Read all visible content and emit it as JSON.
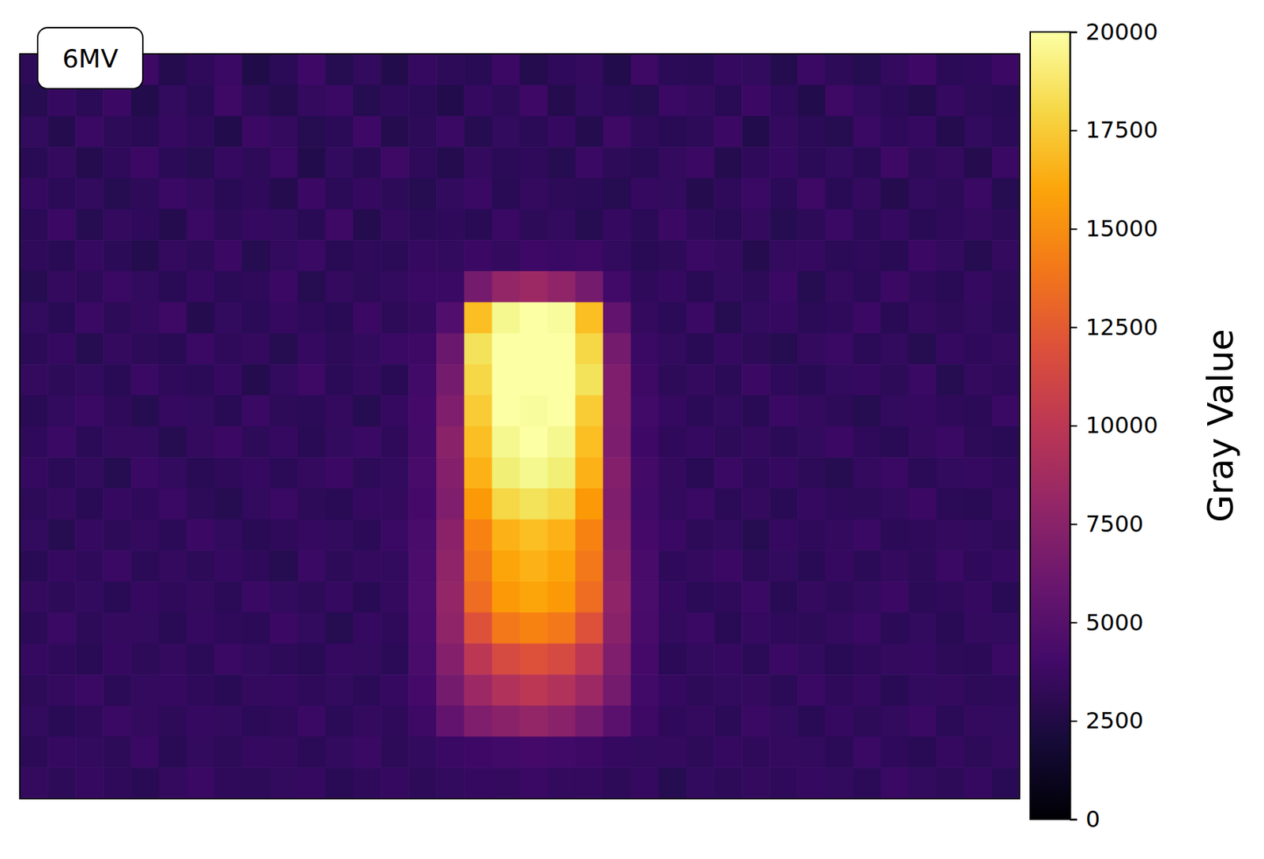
{
  "chart_data": {
    "type": "heatmap",
    "title": "6MV",
    "tick_labels": false,
    "cells": [
      [
        3100,
        2600,
        3400,
        2900,
        3800,
        2700,
        3200,
        3600,
        2500,
        3000,
        3900,
        2800,
        3300,
        2600,
        3500,
        3100,
        2900,
        3700,
        2700,
        3200,
        3400,
        2600,
        3800,
        3000,
        2900,
        3500,
        3300,
        2700,
        3600,
        3100,
        2800,
        3400,
        3900,
        3000,
        3200,
        3700
      ],
      [
        2800,
        3500,
        3000,
        3700,
        2600,
        3300,
        2900,
        3800,
        3100,
        2700,
        3400,
        3600,
        2800,
        3200,
        3000,
        2600,
        3500,
        3100,
        3900,
        2700,
        3300,
        3000,
        2800,
        3600,
        3400,
        2900,
        3700,
        3200,
        2600,
        3800,
        3300,
        3000,
        2700,
        3500,
        3100,
        2900
      ],
      [
        3300,
        2700,
        3600,
        3100,
        2900,
        3500,
        3200,
        2600,
        3700,
        3400,
        2800,
        3000,
        3900,
        2700,
        3100,
        3600,
        2800,
        3300,
        3000,
        3500,
        2700,
        3800,
        3200,
        2900,
        3100,
        3700,
        2600,
        3400,
        3000,
        2800,
        3600,
        3200,
        3500,
        2700,
        3300,
        3000
      ],
      [
        2900,
        3400,
        2700,
        3200,
        3700,
        3000,
        2800,
        3500,
        3100,
        3600,
        2600,
        3300,
        2900,
        3800,
        3200,
        2700,
        3400,
        3000,
        3200,
        2800,
        3600,
        3100,
        2900,
        3400,
        3700,
        2700,
        3200,
        3500,
        3000,
        3300,
        2900,
        3800,
        3100,
        3400,
        2700,
        3600
      ],
      [
        3500,
        3000,
        3300,
        2800,
        3100,
        3600,
        3400,
        2900,
        3200,
        2700,
        3700,
        3000,
        3500,
        3100,
        2800,
        3300,
        3600,
        2900,
        3400,
        3100,
        3000,
        2800,
        3500,
        3300,
        2700,
        3200,
        3600,
        3000,
        3800,
        2900,
        3400,
        2700,
        3300,
        3100,
        3600,
        2800
      ],
      [
        3000,
        3700,
        2800,
        3400,
        3200,
        2700,
        3600,
        3100,
        3500,
        3300,
        2900,
        3800,
        2700,
        3400,
        3000,
        3200,
        2900,
        3600,
        3100,
        3300,
        2800,
        3500,
        3000,
        3700,
        3200,
        2900,
        3400,
        2800,
        3100,
        3600,
        3000,
        3500,
        2900,
        3200,
        3400,
        3100
      ],
      [
        3200,
        2900,
        3500,
        3000,
        2700,
        3400,
        3100,
        3700,
        2800,
        3300,
        3600,
        2900,
        3200,
        3000,
        3500,
        3300,
        3700,
        3400,
        3900,
        3600,
        3800,
        3300,
        2900,
        3100,
        3600,
        3400,
        2700,
        3300,
        3500,
        3000,
        3200,
        2900,
        3700,
        3300,
        2800,
        3400
      ],
      [
        2800,
        3400,
        3100,
        3600,
        3300,
        2900,
        3500,
        3000,
        3200,
        3700,
        2800,
        3400,
        3100,
        3300,
        3600,
        3600,
        6500,
        8000,
        8500,
        7800,
        6500,
        4000,
        3200,
        3500,
        2900,
        3300,
        3100,
        3600,
        2800,
        3400,
        3000,
        3700,
        3200,
        2900,
        3500,
        3100
      ],
      [
        3300,
        2900,
        3600,
        3100,
        3400,
        3800,
        2700,
        3300,
        3000,
        3500,
        3200,
        2900,
        3700,
        3100,
        3400,
        4800,
        17000,
        19500,
        20000,
        19800,
        17000,
        5500,
        3400,
        3000,
        3600,
        2800,
        3300,
        3500,
        3000,
        3200,
        3700,
        2900,
        3400,
        3100,
        3300,
        3000
      ],
      [
        3000,
        3500,
        2800,
        3400,
        3100,
        2900,
        3600,
        3200,
        3400,
        2800,
        3500,
        3100,
        3300,
        3600,
        3800,
        6000,
        18500,
        20000,
        20000,
        20000,
        18000,
        6500,
        3600,
        3300,
        2900,
        3500,
        3100,
        2800,
        3400,
        3600,
        3000,
        3300,
        2800,
        3500,
        3200,
        3400
      ],
      [
        3400,
        3100,
        3300,
        2900,
        3600,
        3200,
        3000,
        3500,
        2700,
        3300,
        3800,
        3000,
        3400,
        2900,
        4000,
        6500,
        18000,
        20000,
        20000,
        20000,
        18500,
        7000,
        3800,
        3100,
        3400,
        3000,
        3700,
        3200,
        2900,
        3300,
        3500,
        3100,
        3600,
        2800,
        3400,
        3200
      ],
      [
        2900,
        3300,
        3600,
        3200,
        2800,
        3500,
        3300,
        2900,
        3600,
        3100,
        3000,
        3400,
        2800,
        3500,
        4200,
        7000,
        17500,
        20000,
        19800,
        20000,
        17500,
        7000,
        4000,
        3500,
        3000,
        3300,
        2900,
        3600,
        3400,
        3100,
        2800,
        3300,
        3500,
        3200,
        3000,
        3600
      ],
      [
        3200,
        3600,
        3000,
        3400,
        3300,
        2800,
        3400,
        3700,
        3100,
        3500,
        2900,
        3300,
        3600,
        3200,
        4100,
        7500,
        17000,
        19500,
        20000,
        19500,
        17000,
        6800,
        3900,
        3200,
        3500,
        3100,
        3400,
        3000,
        3300,
        3700,
        3200,
        2900,
        3400,
        3600,
        3100,
        2900
      ],
      [
        3500,
        3000,
        3300,
        2800,
        3600,
        3300,
        2900,
        3200,
        3500,
        3000,
        3400,
        3700,
        3100,
        3300,
        4300,
        7200,
        16500,
        19000,
        19500,
        19000,
        16500,
        7200,
        4100,
        3400,
        2900,
        3600,
        3200,
        3500,
        3100,
        2800,
        3400,
        3600,
        3000,
        3300,
        3500,
        3200
      ],
      [
        3100,
        3400,
        2900,
        3500,
        3200,
        3600,
        3100,
        2800,
        3300,
        3600,
        3100,
        2900,
        3500,
        3400,
        4200,
        7000,
        15500,
        18000,
        18500,
        18000,
        15500,
        7000,
        4000,
        3300,
        3600,
        3000,
        3400,
        2900,
        3500,
        3200,
        3100,
        3300,
        3700,
        3000,
        2900,
        3400
      ],
      [
        3300,
        2800,
        3500,
        3100,
        3400,
        3000,
        3700,
        3300,
        2900,
        3200,
        3500,
        3300,
        3000,
        3600,
        4400,
        7500,
        14500,
        16500,
        17000,
        16500,
        14500,
        7200,
        4200,
        3600,
        3100,
        3300,
        2800,
        3500,
        3200,
        3400,
        3600,
        3000,
        3200,
        3400,
        3300,
        3100
      ],
      [
        2900,
        3500,
        3200,
        3600,
        3000,
        3400,
        3100,
        3500,
        3200,
        2800,
        3600,
        3100,
        3400,
        3300,
        4500,
        7800,
        14000,
        16000,
        16500,
        16000,
        14000,
        7500,
        4300,
        3200,
        3400,
        3700,
        3100,
        3300,
        2900,
        3500,
        3000,
        3400,
        3100,
        3600,
        3200,
        3500
      ],
      [
        3400,
        3100,
        3300,
        2900,
        3500,
        3200,
        3400,
        3000,
        3600,
        3300,
        3100,
        3500,
        2900,
        3400,
        4600,
        8000,
        13500,
        15500,
        16000,
        15500,
        13500,
        7800,
        4400,
        3500,
        3000,
        3200,
        3600,
        2900,
        3400,
        3100,
        3300,
        3700,
        3000,
        3200,
        3500,
        2900
      ],
      [
        3000,
        3600,
        3100,
        3400,
        3300,
        2900,
        3500,
        3200,
        3000,
        3700,
        3300,
        2800,
        3500,
        3200,
        4500,
        7800,
        12000,
        14000,
        14500,
        14000,
        12000,
        7500,
        4300,
        3300,
        3600,
        2900,
        3500,
        3200,
        3100,
        3400,
        3600,
        3000,
        3300,
        2900,
        3400,
        3300
      ],
      [
        3500,
        3200,
        2900,
        3500,
        3100,
        3400,
        3000,
        3600,
        3300,
        3100,
        2900,
        3500,
        3300,
        3000,
        4400,
        7200,
        10000,
        11500,
        12000,
        11500,
        10000,
        7000,
        4200,
        3000,
        3300,
        3500,
        3000,
        3600,
        3300,
        2900,
        3200,
        3400,
        3500,
        3100,
        3000,
        3600
      ],
      [
        3100,
        3400,
        3600,
        3000,
        3300,
        3500,
        3200,
        2900,
        3400,
        3500,
        3200,
        3300,
        3000,
        3500,
        4200,
        6500,
        8500,
        9500,
        10000,
        9500,
        8500,
        6500,
        4000,
        3500,
        3100,
        3300,
        3400,
        3000,
        3600,
        3200,
        3500,
        2900,
        3300,
        3400,
        3100,
        3200
      ],
      [
        3300,
        2900,
        3200,
        3600,
        3400,
        3100,
        3500,
        3300,
        3000,
        3200,
        3600,
        3000,
        3400,
        3200,
        3800,
        5500,
        7000,
        7500,
        8000,
        7500,
        6500,
        5200,
        3800,
        3200,
        3400,
        3000,
        3600,
        3300,
        2900,
        3500,
        3100,
        3300,
        3600,
        3000,
        3400,
        3300
      ],
      [
        3000,
        3500,
        3300,
        3100,
        3600,
        2900,
        3300,
        3100,
        3500,
        3400,
        3000,
        3300,
        3600,
        3100,
        3300,
        3600,
        3900,
        4000,
        4200,
        4000,
        3800,
        3500,
        3300,
        3400,
        3100,
        3500,
        3200,
        3400,
        3300,
        3000,
        3600,
        3200,
        2900,
        3500,
        3100,
        3400
      ],
      [
        3400,
        3100,
        3500,
        3200,
        2900,
        3400,
        3600,
        3200,
        3100,
        3300,
        3500,
        2900,
        3200,
        3500,
        3100,
        3300,
        3500,
        3400,
        3600,
        3300,
        3400,
        3100,
        3500,
        2800,
        3300,
        3100,
        3400,
        3200,
        3500,
        3300,
        3000,
        3600,
        3300,
        3100,
        3500,
        2900
      ]
    ],
    "colorbar": {
      "label": "Gray Value",
      "range": [
        0,
        20000
      ],
      "ticks": [
        0,
        2500,
        5000,
        7500,
        10000,
        12500,
        15000,
        17500,
        20000
      ]
    }
  }
}
